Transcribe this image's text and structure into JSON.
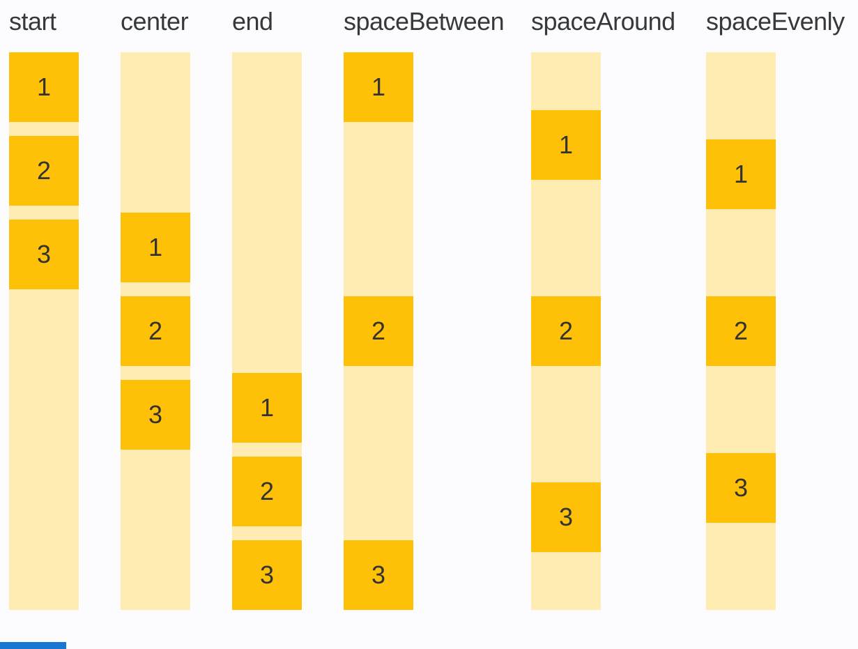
{
  "page": {
    "background": "#fcfcff"
  },
  "colors": {
    "box": "#ffc107",
    "container": "#ffecb3",
    "header_text": "#35393e",
    "box_text": "#333333",
    "bottom_bar": "#1976d2"
  },
  "columns": [
    {
      "label": "start",
      "justify": "flex-start",
      "gap": 20,
      "items": [
        "1",
        "2",
        "3"
      ]
    },
    {
      "label": "center",
      "justify": "center",
      "gap": 20,
      "items": [
        "1",
        "2",
        "3"
      ]
    },
    {
      "label": "end",
      "justify": "flex-end",
      "gap": 20,
      "items": [
        "1",
        "2",
        "3"
      ]
    },
    {
      "label": "spaceBetween",
      "justify": "space-between",
      "gap": 0,
      "items": [
        "1",
        "2",
        "3"
      ]
    },
    {
      "label": "spaceAround",
      "justify": "space-around",
      "gap": 0,
      "items": [
        "1",
        "2",
        "3"
      ]
    },
    {
      "label": "spaceEvenly",
      "justify": "space-evenly",
      "gap": 0,
      "items": [
        "1",
        "2",
        "3"
      ]
    }
  ]
}
